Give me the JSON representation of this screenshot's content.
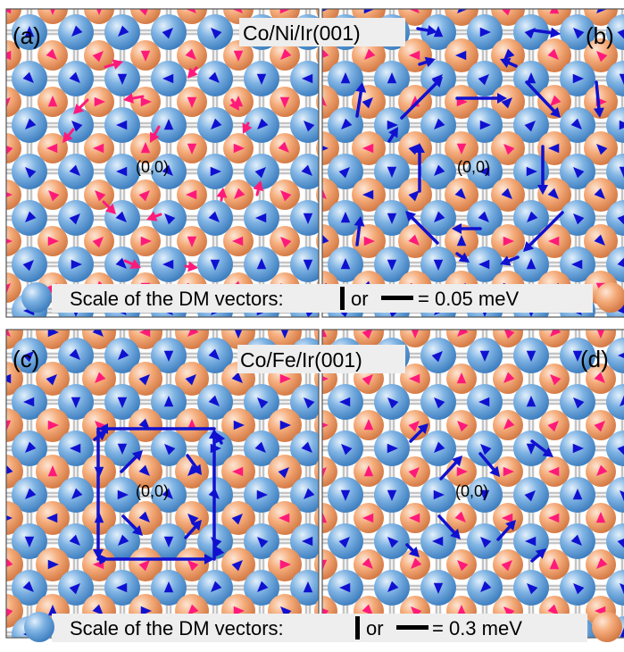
{
  "figure": {
    "top_label": "Co/Ni/Ir(001)",
    "bottom_label": "Co/Fe/Ir(001)",
    "origin_label": "(0,0)",
    "top_scale": {
      "prefix": "Scale of the DM vectors:",
      "or": "or",
      "value": "= 0.05 meV"
    },
    "bottom_scale": {
      "prefix": "Scale of the DM vectors:",
      "or": "or",
      "value": "= 0.3 meV"
    },
    "panels": [
      {
        "id": "a",
        "label": "(a)"
      },
      {
        "id": "b",
        "label": "(b)"
      },
      {
        "id": "c",
        "label": "(c)"
      },
      {
        "id": "d",
        "label": "(d)"
      }
    ],
    "colors": {
      "frame": "#555555",
      "grid": "#c8c8c8",
      "co_atom": "#6aa6dc",
      "second_atom": "#f0a673",
      "dm_in_plane_magenta": "#ff1a7a",
      "dm_blue": "#1010d0"
    }
  }
}
